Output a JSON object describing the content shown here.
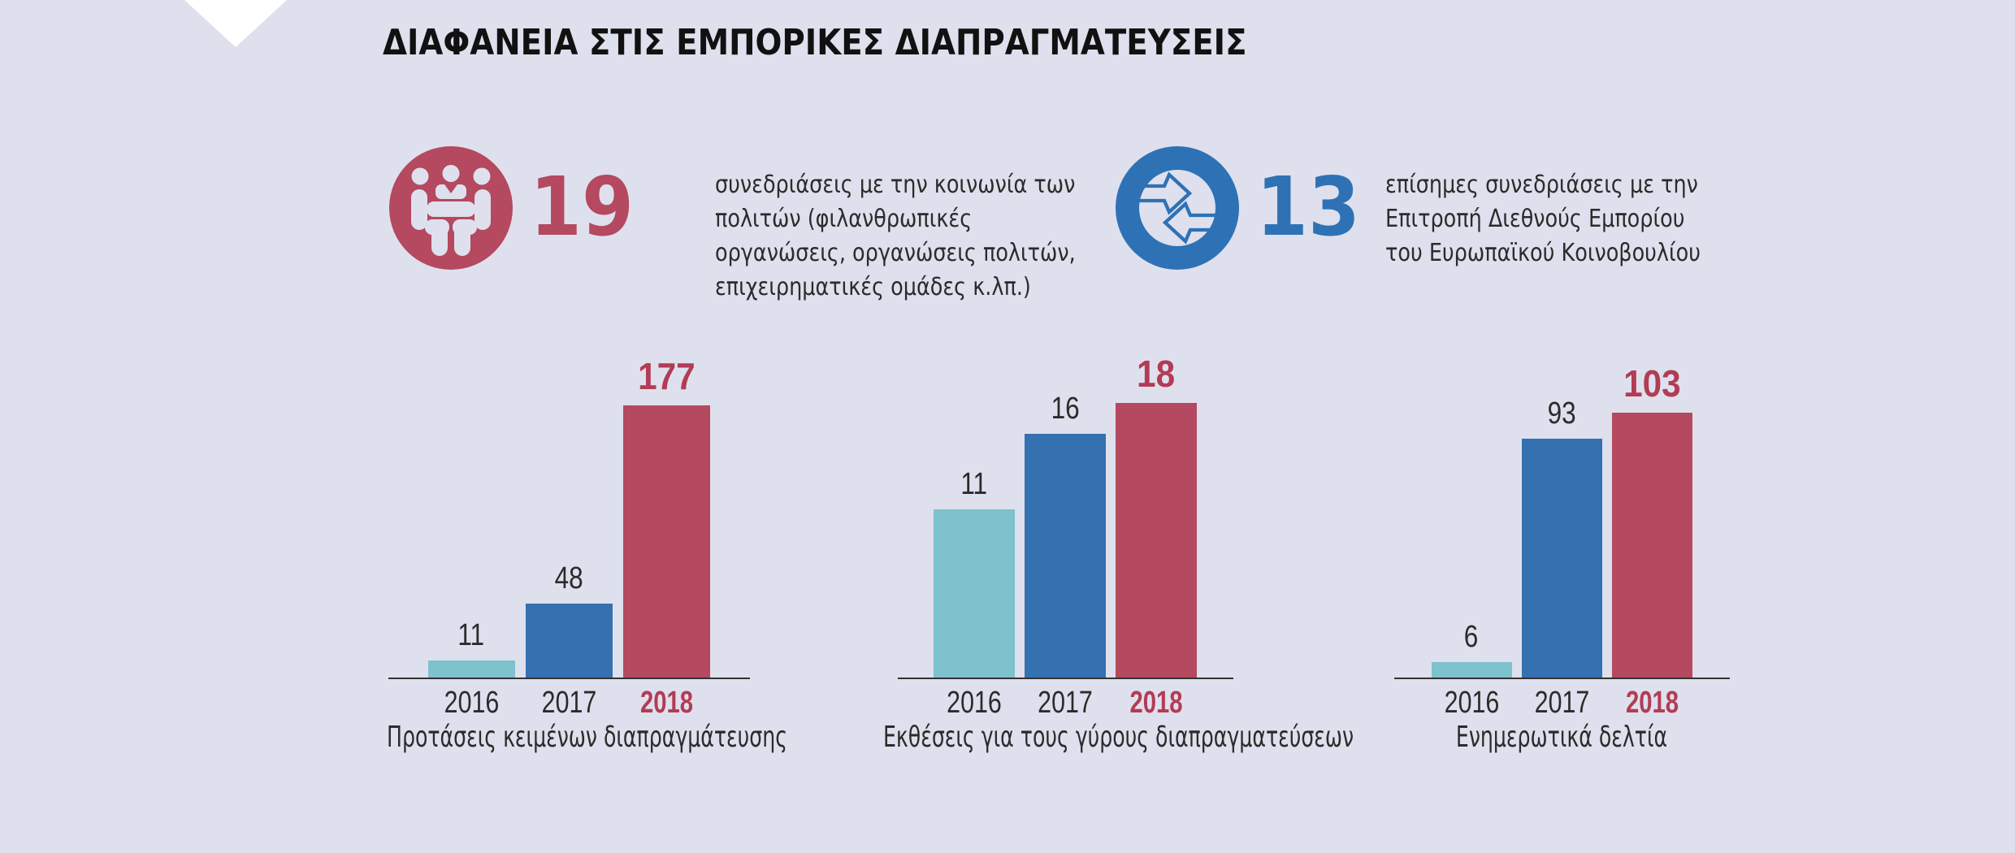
{
  "title": "ΔΙΑΦΑΝΕΙΑ ΣΤΙΣ ΕΜΠΟΡΙΚΕΣ ΔΙΑΠΡΑΓΜΑΤΕΥΣΕΙΣ",
  "colors": {
    "background": "#dfe0ed",
    "teal": "#7dc2cc",
    "blue": "#3570b0",
    "crimson": "#b4495f",
    "highlight_text": "#b23c55",
    "dark_text": "#2b2b2b"
  },
  "stats": [
    {
      "icon": "meeting-icon",
      "value": "19",
      "text": "συνεδριάσεις με την κοινωνία των\nπολιτών (φιλανθρωπικές\nοργανώσεις, οργανώσεις πολιτών,\nεπιχειρηματικές ομάδες κ.λπ.)"
    },
    {
      "icon": "exchange-icon",
      "value": "13",
      "text": "επίσημες συνεδριάσεις με την\nΕπιτροπή Διεθνούς Εμπορίου\nτου Ευρωπαϊκού Κοινοβουλίου"
    }
  ],
  "chart_data": [
    {
      "type": "bar",
      "title": "Προτάσεις κειμένων διαπραγμάτευσης",
      "categories": [
        "2016",
        "2017",
        "2018"
      ],
      "values": [
        11,
        48,
        177
      ],
      "bar_colors": [
        "#7dc2cc",
        "#3570b0",
        "#b4495f"
      ],
      "highlight_category": "2018"
    },
    {
      "type": "bar",
      "title": "Εκθέσεις για τους γύρους διαπραγματεύσεων",
      "categories": [
        "2016",
        "2017",
        "2018"
      ],
      "values": [
        11,
        16,
        18
      ],
      "bar_colors": [
        "#7dc2cc",
        "#3570b0",
        "#b4495f"
      ],
      "highlight_category": "2018"
    },
    {
      "type": "bar",
      "title": "Ενημερωτικά δελτία",
      "categories": [
        "2016",
        "2017",
        "2018"
      ],
      "values": [
        6,
        93,
        103
      ],
      "bar_colors": [
        "#7dc2cc",
        "#3570b0",
        "#b4495f"
      ],
      "highlight_category": "2018"
    }
  ]
}
